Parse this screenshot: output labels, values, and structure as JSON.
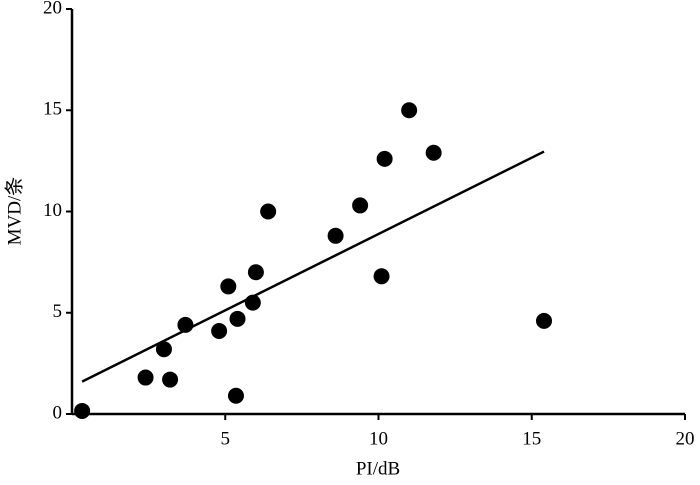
{
  "chart_data": {
    "type": "scatter",
    "x_label": "PI/dB",
    "y_label": "MVD/条",
    "x": [
      0.33,
      2.4,
      3.2,
      3.0,
      3.7,
      4.8,
      5.1,
      5.35,
      5.4,
      5.9,
      6.0,
      6.4,
      8.6,
      9.4,
      10.1,
      10.2,
      11.0,
      11.8,
      15.4
    ],
    "values": [
      0.15,
      1.8,
      1.7,
      3.2,
      4.4,
      4.1,
      6.3,
      0.9,
      4.7,
      5.5,
      7.0,
      10.0,
      8.8,
      10.3,
      6.8,
      12.6,
      15.0,
      12.9,
      4.6
    ],
    "color": "#000000",
    "trend": {
      "x": [
        0.33,
        15.4
      ],
      "values": [
        1.6,
        12.96
      ],
      "color": "#000000"
    },
    "xlim": [
      0,
      20
    ],
    "xticks": [
      5,
      10,
      15,
      20
    ],
    "ylim": [
      0,
      20
    ],
    "yticks": [
      0,
      5,
      10,
      15,
      20
    ],
    "grid": false
  }
}
